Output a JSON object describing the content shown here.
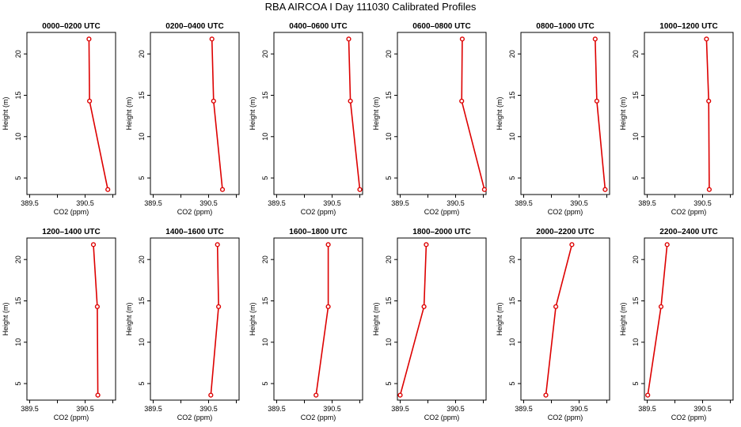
{
  "title": "RBA AIRCOA I  Day 111030  Calibrated Profiles",
  "chart_data": {
    "type": "line",
    "layout": "2x6 grid",
    "xlabel": "CO2 (ppm)",
    "ylabel": "Height (m)",
    "x_ticks": [
      389.5,
      390,
      390.5,
      391
    ],
    "x_tick_labels": [
      "389.5",
      "",
      "390.5",
      ""
    ],
    "xlim": [
      389.45,
      391.05
    ],
    "y_ticks": [
      5,
      10,
      15,
      20
    ],
    "y_tick_labels": [
      "5",
      "10",
      "15",
      "20"
    ],
    "ylim": [
      3.0,
      22.6
    ],
    "heights": [
      3.6,
      14.3,
      21.8
    ],
    "line_color": "#dd0000",
    "panels": [
      {
        "title": "0000–0200 UTC",
        "co2": [
          390.91,
          390.58,
          390.57
        ]
      },
      {
        "title": "0200–0400 UTC",
        "co2": [
          390.75,
          390.59,
          390.56
        ]
      },
      {
        "title": "0400–0600 UTC",
        "co2": [
          391.0,
          390.83,
          390.8
        ]
      },
      {
        "title": "0600–0800 UTC",
        "co2": [
          391.02,
          390.61,
          390.62
        ]
      },
      {
        "title": "0800–1000 UTC",
        "co2": [
          390.97,
          390.82,
          390.79
        ]
      },
      {
        "title": "1000–1200 UTC",
        "co2": [
          390.62,
          390.61,
          390.57
        ]
      },
      {
        "title": "1200–1400 UTC",
        "co2": [
          390.73,
          390.72,
          390.65
        ]
      },
      {
        "title": "1400–1600 UTC",
        "co2": [
          390.54,
          390.68,
          390.66
        ]
      },
      {
        "title": "1600–1800 UTC",
        "co2": [
          390.21,
          390.43,
          390.43
        ]
      },
      {
        "title": "1800–2000 UTC",
        "co2": [
          389.5,
          389.93,
          389.97
        ]
      },
      {
        "title": "2000–2200 UTC",
        "co2": [
          389.9,
          390.08,
          390.37
        ]
      },
      {
        "title": "2200–2400 UTC",
        "co2": [
          389.51,
          389.75,
          389.86
        ]
      }
    ]
  }
}
